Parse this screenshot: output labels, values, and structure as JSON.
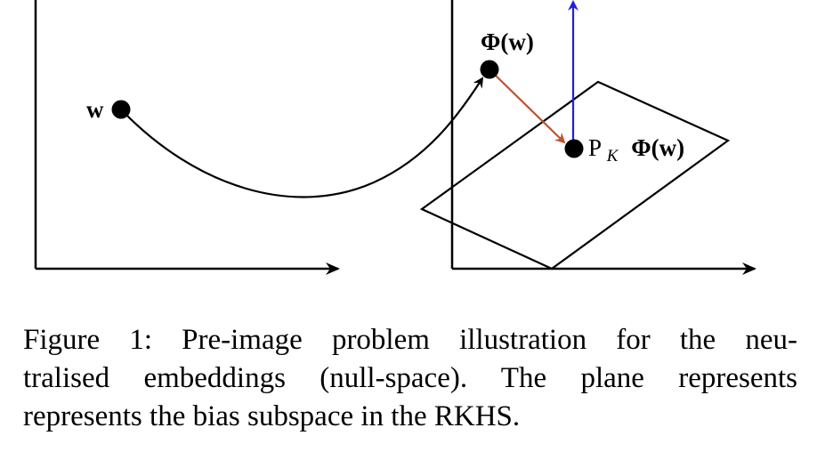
{
  "labels": {
    "w": "w",
    "phi_w": "Φ(w)",
    "projection_prefix": "P",
    "projection_subscript": "K",
    "projection_phi": "Φ(w)"
  },
  "caption": {
    "lines": [
      "Figure 1: Pre-image problem illustration for the neu-",
      "tralised embeddings (null-space). The plane represents",
      "represents the bias subspace in the RKHS."
    ]
  },
  "colors": {
    "mapping_arrow": "#000000",
    "projection_arrow": "#c0502e",
    "normal_arrow": "#2020e0",
    "axes": "#000000"
  }
}
